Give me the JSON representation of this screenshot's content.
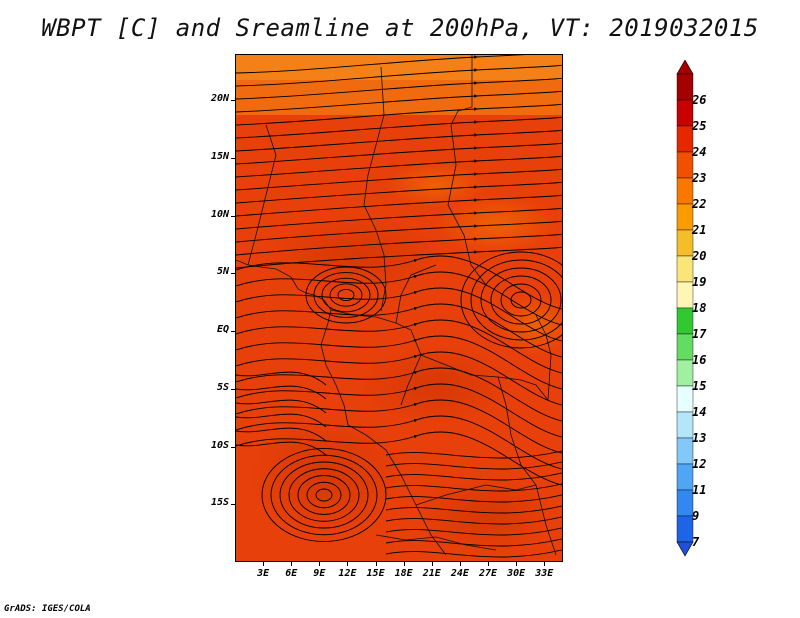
{
  "title": "WBPT [C] and Sreamline at 200hPa, VT: 2019032015",
  "footer": "GrADS: IGES/COLA",
  "map": {
    "lon_range": [
      0,
      35
    ],
    "lat_range": [
      -20,
      24
    ],
    "y_ticks": [
      {
        "label": "20N",
        "lat": 20
      },
      {
        "label": "15N",
        "lat": 15
      },
      {
        "label": "10N",
        "lat": 10
      },
      {
        "label": "5N",
        "lat": 5
      },
      {
        "label": "EQ",
        "lat": 0
      },
      {
        "label": "5S",
        "lat": -5
      },
      {
        "label": "10S",
        "lat": -10
      },
      {
        "label": "15S",
        "lat": -15
      }
    ],
    "x_ticks": [
      {
        "label": "3E",
        "lon": 3
      },
      {
        "label": "6E",
        "lon": 6
      },
      {
        "label": "9E",
        "lon": 9
      },
      {
        "label": "12E",
        "lon": 12
      },
      {
        "label": "15E",
        "lon": 15
      },
      {
        "label": "18E",
        "lon": 18
      },
      {
        "label": "21E",
        "lon": 21
      },
      {
        "label": "24E",
        "lon": 24
      },
      {
        "label": "27E",
        "lon": 27
      },
      {
        "label": "30E",
        "lon": 30
      },
      {
        "label": "33E",
        "lon": 33
      }
    ]
  },
  "colorbar": {
    "levels": [
      {
        "label": "26",
        "color": "#a50000"
      },
      {
        "label": "25",
        "color": "#c80000"
      },
      {
        "label": "24",
        "color": "#e62800"
      },
      {
        "label": "23",
        "color": "#f05000"
      },
      {
        "label": "22",
        "color": "#fa7800"
      },
      {
        "label": "21",
        "color": "#fa9b00"
      },
      {
        "label": "20",
        "color": "#f5be28"
      },
      {
        "label": "19",
        "color": "#fae678"
      },
      {
        "label": "18",
        "color": "#fff5b4"
      },
      {
        "label": "17",
        "color": "#32c832"
      },
      {
        "label": "16",
        "color": "#64dc64"
      },
      {
        "label": "15",
        "color": "#a0f0a0"
      },
      {
        "label": "14",
        "color": "#e6ffff"
      },
      {
        "label": "13",
        "color": "#b4e6fa"
      },
      {
        "label": "12",
        "color": "#82c8fa"
      },
      {
        "label": "11",
        "color": "#50a5f5"
      },
      {
        "label": "9",
        "color": "#3287f0"
      },
      {
        "label": "7",
        "color": "#1e64e6"
      }
    ],
    "bottom_color": "#1e50dc"
  }
}
